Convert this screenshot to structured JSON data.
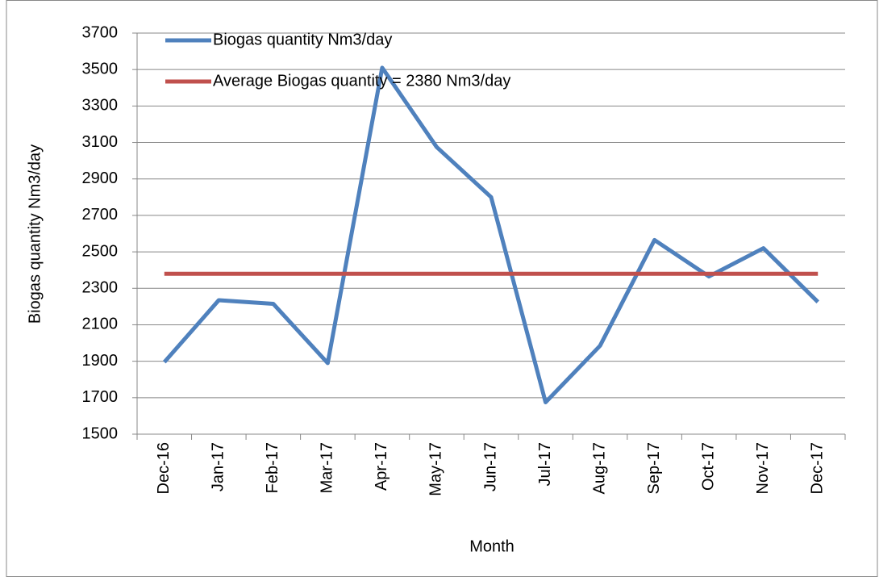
{
  "chart_data": {
    "type": "line",
    "x_label": "Month",
    "y_label": "Biogas quantity Nm3/day",
    "categories": [
      "Dec-16",
      "Jan-17",
      "Feb-17",
      "Mar-17",
      "Apr-17",
      "May-17",
      "Jun-17",
      "Jul-17",
      "Aug-17",
      "Sep-17",
      "Oct-17",
      "Nov-17",
      "Dec-17"
    ],
    "series": [
      {
        "name": "Biogas quantity Nm3/day",
        "color": "#4f81bd",
        "values": [
          1895,
          2235,
          2215,
          1890,
          3510,
          3075,
          2800,
          1675,
          1985,
          2565,
          2365,
          2520,
          2225
        ]
      },
      {
        "name": "Average Biogas quantity = 2380 Nm3/day",
        "color": "#c0504d",
        "values": [
          2380,
          2380,
          2380,
          2380,
          2380,
          2380,
          2380,
          2380,
          2380,
          2380,
          2380,
          2380,
          2380
        ]
      }
    ],
    "ylim": [
      1500,
      3700
    ],
    "yticks": [
      1500,
      1700,
      1900,
      2100,
      2300,
      2500,
      2700,
      2900,
      3100,
      3300,
      3500,
      3700
    ],
    "grid": true,
    "legend": "top-left"
  }
}
